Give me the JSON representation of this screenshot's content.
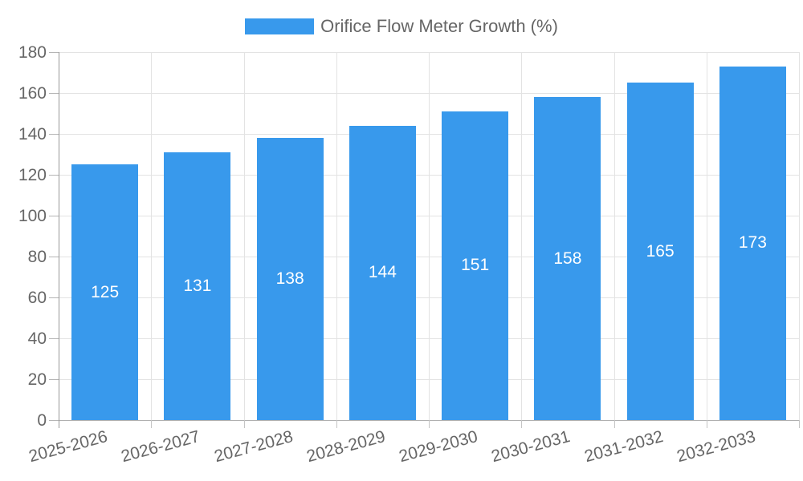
{
  "legend": {
    "label": "Orifice Flow Meter Growth (%)",
    "swatch_color": "#3899ec"
  },
  "chart_data": {
    "type": "bar",
    "title": "Orifice Flow Meter Growth (%)",
    "categories": [
      "2025-2026",
      "2026-2027",
      "2027-2028",
      "2028-2029",
      "2029-2030",
      "2030-2031",
      "2031-2032",
      "2032-2033"
    ],
    "values": [
      125,
      131,
      138,
      144,
      151,
      158,
      165,
      173
    ],
    "value_labels": [
      "125",
      "131",
      "138",
      "144",
      "151",
      "158",
      "165",
      "173"
    ],
    "xlabel": "",
    "ylabel": "",
    "ylim": [
      0,
      180
    ],
    "ytick_step": 20,
    "yticks": [
      0,
      20,
      40,
      60,
      80,
      100,
      120,
      140,
      160,
      180
    ],
    "grid": true,
    "legend_position": "top",
    "x_label_rotation_deg": -15,
    "bar_color": "#3899ec",
    "value_label_color": "#ffffff",
    "axis_text_color": "#666666",
    "grid_color": "#e3e3e3",
    "axis_line_color": "#999999"
  }
}
